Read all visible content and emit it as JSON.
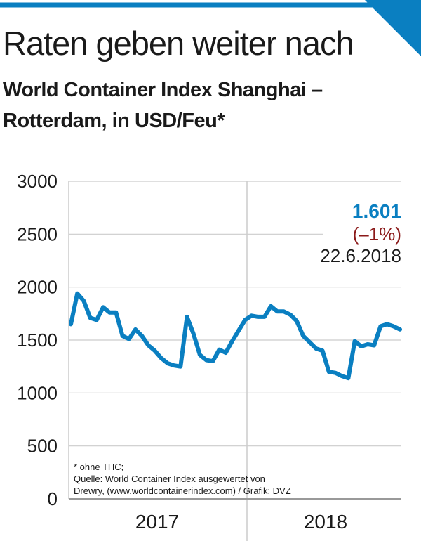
{
  "colors": {
    "accent": "#0a7fc1",
    "negative": "#8b1a1a",
    "grid": "#cccccc",
    "text": "#1a1a1a"
  },
  "header": {
    "title": "Raten geben weiter nach",
    "subtitle": "World Container Index Shanghai – Rotterdam, in USD/Feu*"
  },
  "annotation": {
    "value": "1.601",
    "change": "(–1%)",
    "date": "22.6.2018"
  },
  "footnote": {
    "line1": "* ohne THC;",
    "line2": "Quelle: World Container Index ausgewertet von",
    "line3": "Drewry, (www.worldcontainerindex.com) / Grafik: DVZ"
  },
  "chart_data": {
    "type": "line",
    "title": "World Container Index Shanghai – Rotterdam, in USD/Feu*",
    "xlabel": "",
    "ylabel": "",
    "ylim": [
      0,
      3000
    ],
    "yticks": [
      0,
      500,
      1000,
      1500,
      2000,
      2500,
      3000
    ],
    "xtick_labels": [
      "2017",
      "2018"
    ],
    "grid": true,
    "series": [
      {
        "values": [
          1650,
          1940,
          1870,
          1710,
          1690,
          1810,
          1760,
          1760,
          1540,
          1510,
          1600,
          1540,
          1450,
          1400,
          1330,
          1280,
          1260,
          1250,
          1720,
          1560,
          1360,
          1310,
          1300,
          1410,
          1380,
          1490,
          1590,
          1690,
          1730,
          1720,
          1720,
          1820,
          1770,
          1770,
          1740,
          1680,
          1540,
          1480,
          1420,
          1400,
          1200,
          1190,
          1160,
          1140,
          1490,
          1440,
          1460,
          1450,
          1630,
          1650,
          1630,
          1601
        ]
      }
    ]
  }
}
